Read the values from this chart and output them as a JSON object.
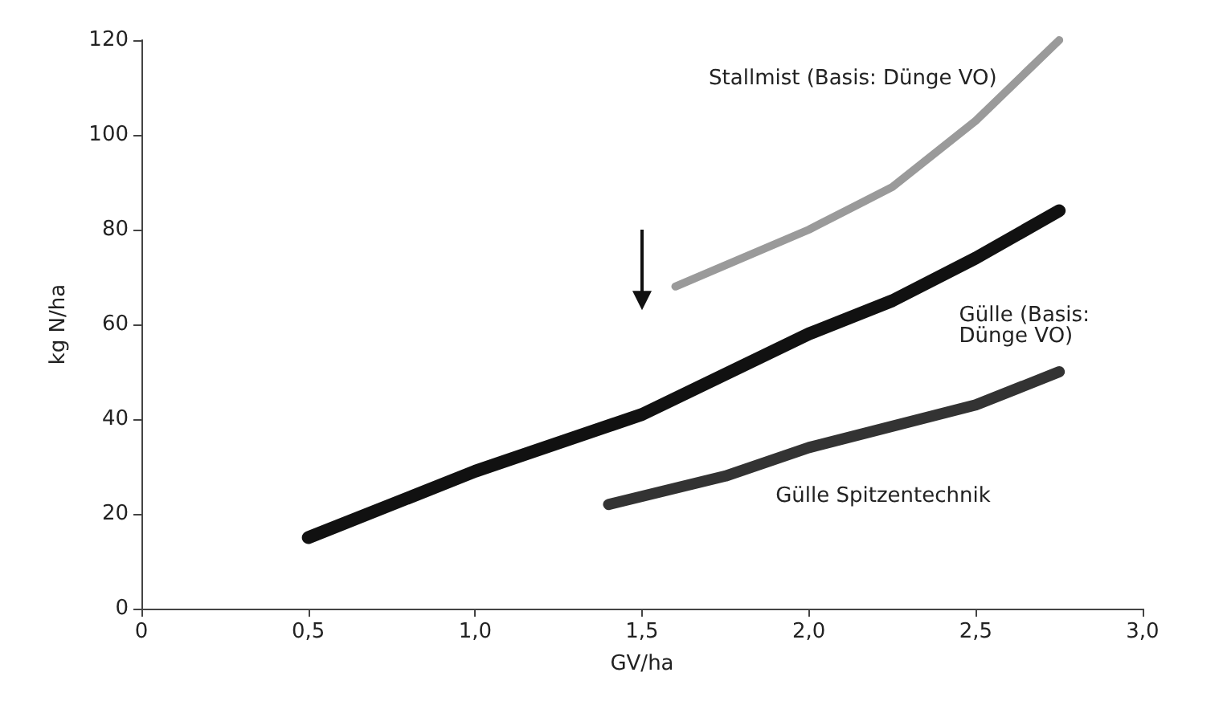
{
  "chart_data": {
    "type": "line",
    "xlabel": "GV/ha",
    "ylabel": "kg N/ha",
    "xlim": [
      0,
      3.0
    ],
    "xticks": [
      0,
      {
        "value": 0.5,
        "label": "0,5"
      },
      {
        "value": 1.0,
        "label": "1,0"
      },
      {
        "value": 1.5,
        "label": "1,5"
      },
      {
        "value": 2.0,
        "label": "2,0"
      },
      {
        "value": 2.5,
        "label": "2,5"
      },
      {
        "value": 3.0,
        "label": "3,0"
      }
    ],
    "ylim": [
      0,
      120
    ],
    "yticks": [
      0,
      20,
      40,
      60,
      80,
      100,
      120
    ],
    "grid": false,
    "legend": false,
    "marker": "none",
    "line_style": "solid",
    "series": [
      {
        "name": "Stallmist (Basis: Dünge VO)",
        "color": "#9a9a9a",
        "x": [
          1.6,
          2.0,
          2.25,
          2.5,
          2.75
        ],
        "values": [
          68,
          80,
          89,
          103,
          120
        ]
      },
      {
        "name": "Gülle (Basis: Dünge VO)",
        "color": "#111111",
        "x": [
          0.5,
          1.0,
          1.5,
          2.0,
          2.25,
          2.5,
          2.75
        ],
        "values": [
          15,
          29,
          41,
          58,
          65,
          74,
          84
        ]
      },
      {
        "name": "Gülle Spitzentechnik",
        "color": "#333333",
        "x": [
          1.4,
          1.75,
          2.0,
          2.5,
          2.75
        ],
        "values": [
          22,
          28,
          34,
          43,
          50
        ]
      }
    ]
  }
}
